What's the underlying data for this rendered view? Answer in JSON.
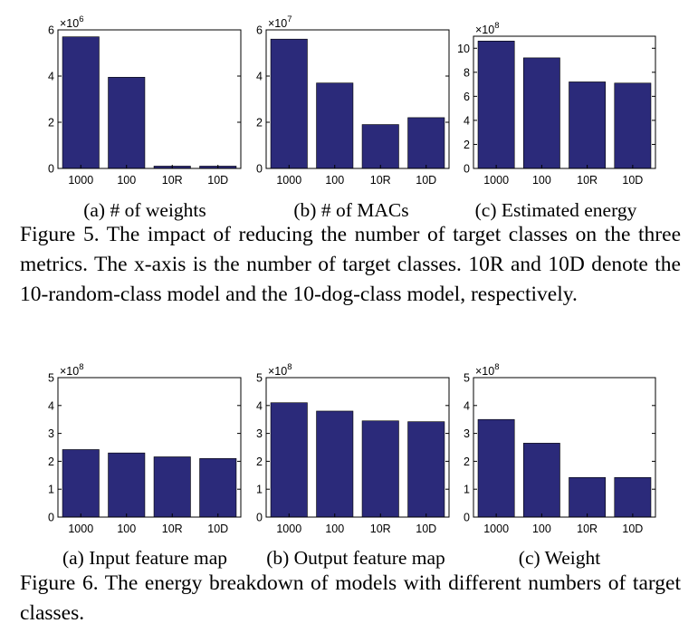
{
  "colors": {
    "bar": "#2b2a7a",
    "axis": "#000000",
    "text": "#000000",
    "background": "#ffffff"
  },
  "chart_data": [
    {
      "type": "bar",
      "subcaption": "(a) # of weights",
      "categories": [
        "1000",
        "100",
        "10R",
        "10D"
      ],
      "values": [
        5.7,
        3.95,
        0.1,
        0.1
      ],
      "ylim": [
        0,
        6
      ],
      "yticks": [
        0,
        2,
        4,
        6
      ],
      "multiplier": "×10",
      "exponent": "6",
      "xlabel": "",
      "ylabel": ""
    },
    {
      "type": "bar",
      "subcaption": "(b) # of MACs",
      "categories": [
        "1000",
        "100",
        "10R",
        "10D"
      ],
      "values": [
        5.6,
        3.7,
        1.9,
        2.2
      ],
      "ylim": [
        0,
        6
      ],
      "yticks": [
        0,
        2,
        4,
        6
      ],
      "multiplier": "×10",
      "exponent": "7",
      "xlabel": "",
      "ylabel": ""
    },
    {
      "type": "bar",
      "subcaption": "(c) Estimated energy",
      "categories": [
        "1000",
        "100",
        "10R",
        "10D"
      ],
      "values": [
        10.6,
        9.2,
        7.2,
        7.1
      ],
      "ylim": [
        0,
        11
      ],
      "yticks": [
        0,
        2,
        4,
        6,
        8,
        10
      ],
      "multiplier": "×10",
      "exponent": "8",
      "xlabel": "",
      "ylabel": ""
    },
    {
      "type": "bar",
      "subcaption": "(a) Input feature map",
      "categories": [
        "1000",
        "100",
        "10R",
        "10D"
      ],
      "values": [
        2.42,
        2.3,
        2.16,
        2.1
      ],
      "ylim": [
        0,
        5
      ],
      "yticks": [
        0,
        1,
        2,
        3,
        4,
        5
      ],
      "multiplier": "×10",
      "exponent": "8",
      "xlabel": "",
      "ylabel": ""
    },
    {
      "type": "bar",
      "subcaption": "(b) Output feature map",
      "categories": [
        "1000",
        "100",
        "10R",
        "10D"
      ],
      "values": [
        4.1,
        3.8,
        3.45,
        3.42
      ],
      "ylim": [
        0,
        5
      ],
      "yticks": [
        0,
        1,
        2,
        3,
        4,
        5
      ],
      "multiplier": "×10",
      "exponent": "8",
      "xlabel": "",
      "ylabel": ""
    },
    {
      "type": "bar",
      "subcaption": "(c) Weight",
      "categories": [
        "1000",
        "100",
        "10R",
        "10D"
      ],
      "values": [
        3.5,
        2.65,
        1.42,
        1.42
      ],
      "ylim": [
        0,
        5
      ],
      "yticks": [
        0,
        1,
        2,
        3,
        4,
        5
      ],
      "multiplier": "×10",
      "exponent": "8",
      "xlabel": "",
      "ylabel": ""
    }
  ],
  "figures": {
    "fig5_caption": "Figure 5. The impact of reducing the number of target classes on the three metrics. The x-axis is the number of target classes. 10R and 10D denote the 10-random-class model and the 10-dog-class model, respectively.",
    "fig6_caption": "Figure 6. The energy breakdown of models with different numbers of target classes."
  }
}
